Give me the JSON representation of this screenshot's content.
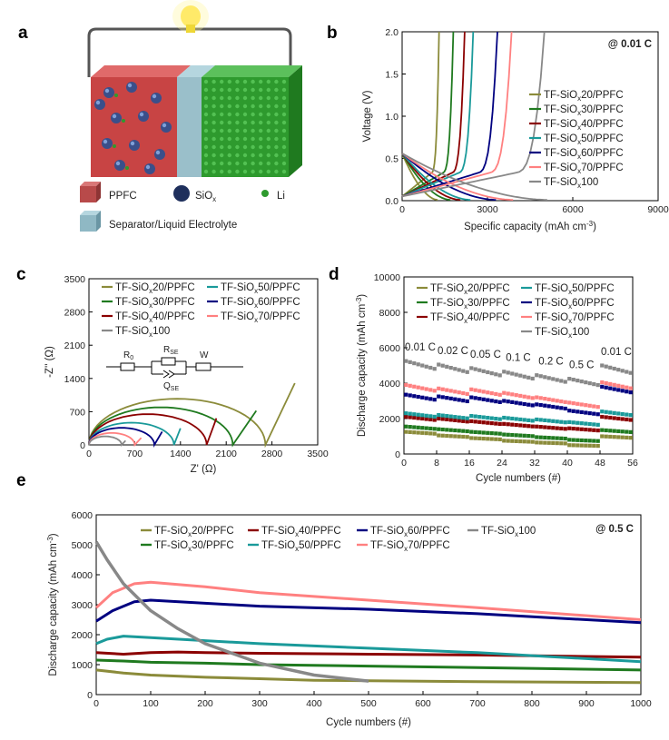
{
  "colors": {
    "s20": "#8b8b3a",
    "s30": "#1f7a1f",
    "s40": "#8b0000",
    "s50": "#1a9a9a",
    "s60": "#000080",
    "s70": "#ff8080",
    "s100": "#888888",
    "ppfc_red": "#c84040",
    "electrode_green": "#2e9a2e"
  },
  "panel_a": {
    "letter": "a",
    "legend": [
      {
        "label": "PPFC",
        "icon": "cube-red-icon"
      },
      {
        "label": "SiO",
        "sub": "x",
        "icon": "sphere-blue-icon"
      },
      {
        "label": "Li",
        "icon": "dot-green-icon"
      },
      {
        "label": "Separator/Liquid Electrolyte",
        "icon": "cube-cyan-icon"
      }
    ]
  },
  "chart_data": [
    {
      "id": "b",
      "letter": "b",
      "type": "line",
      "xlabel": "Specific capacity (mAh cm",
      "xlabel_sup": "-3",
      "xlabel_end": ")",
      "ylabel": "Voltage (V)",
      "xlim": [
        0,
        9000
      ],
      "ylim": [
        0,
        2.0
      ],
      "xticks": [
        0,
        3000,
        6000,
        9000
      ],
      "xtick_labels": [
        "0",
        "3000",
        "6000",
        "9000"
      ],
      "yticks": [
        0,
        0.5,
        1.0,
        1.5,
        2.0
      ],
      "ytick_labels": [
        "0.0",
        "0.5",
        "1.0",
        "1.5",
        "2.0"
      ],
      "annotation": "@ 0.01 C",
      "series": [
        {
          "name": "TF-SiOx20/PPFC",
          "prefix": "TF-SiO",
          "sub": "x",
          "suffix": "20/PPFC",
          "color": "s20",
          "discharge_end": 1250,
          "charge_end": 1300
        },
        {
          "name": "TF-SiOx30/PPFC",
          "prefix": "TF-SiO",
          "sub": "x",
          "suffix": "30/PPFC",
          "color": "s30",
          "discharge_end": 1700,
          "charge_end": 1800
        },
        {
          "name": "TF-SiOx40/PPFC",
          "prefix": "TF-SiO",
          "sub": "x",
          "suffix": "40/PPFC",
          "color": "s40",
          "discharge_end": 2050,
          "charge_end": 2200
        },
        {
          "name": "TF-SiOx50/PPFC",
          "prefix": "TF-SiO",
          "sub": "x",
          "suffix": "50/PPFC",
          "color": "s50",
          "discharge_end": 2400,
          "charge_end": 2500
        },
        {
          "name": "TF-SiOx60/PPFC",
          "prefix": "TF-SiO",
          "sub": "x",
          "suffix": "60/PPFC",
          "color": "s60",
          "discharge_end": 3300,
          "charge_end": 3350
        },
        {
          "name": "TF-SiOx70/PPFC",
          "prefix": "TF-SiO",
          "sub": "x",
          "suffix": "70/PPFC",
          "color": "s70",
          "discharge_end": 3900,
          "charge_end": 3850
        },
        {
          "name": "TF-SiOx100",
          "prefix": "TF-SiO",
          "sub": "x",
          "suffix": "100",
          "color": "s100",
          "discharge_end": 5100,
          "charge_end": 5000
        }
      ]
    },
    {
      "id": "c",
      "letter": "c",
      "type": "line",
      "xlabel": "Z' (Ω)",
      "ylabel": "-Z'' (Ω)",
      "xlim": [
        0,
        3500
      ],
      "ylim": [
        0,
        3500
      ],
      "xticks": [
        0,
        700,
        1400,
        2100,
        2800,
        3500
      ],
      "xtick_labels": [
        "0",
        "700",
        "1400",
        "2100",
        "2800",
        "3500"
      ],
      "yticks": [
        0,
        700,
        1400,
        2100,
        2800,
        3500
      ],
      "ytick_labels": [
        "0",
        "700",
        "1400",
        "2100",
        "2800",
        "3500"
      ],
      "circuit": {
        "r0": "R",
        "r0_sub": "0",
        "rse": "R",
        "rse_sub": "SE",
        "qse": "Q",
        "qse_sub": "SE",
        "w": "W"
      },
      "series": [
        {
          "name": "TF-SiOx20/PPFC",
          "color": "s20",
          "semicircle_end": 2700,
          "tail_end_x": 3150,
          "tail_end_y": 1300
        },
        {
          "name": "TF-SiOx30/PPFC",
          "color": "s30",
          "semicircle_end": 2200,
          "tail_end_x": 2560,
          "tail_end_y": 720
        },
        {
          "name": "TF-SiOx40/PPFC",
          "color": "s40",
          "semicircle_end": 1800,
          "tail_end_x": 1950,
          "tail_end_y": 560
        },
        {
          "name": "TF-SiOx50/PPFC",
          "color": "s50",
          "semicircle_end": 1300,
          "tail_end_x": 1400,
          "tail_end_y": 350
        },
        {
          "name": "TF-SiOx60/PPFC",
          "color": "s60",
          "semicircle_end": 1000,
          "tail_end_x": 1120,
          "tail_end_y": 280
        },
        {
          "name": "TF-SiOx70/PPFC",
          "color": "s70",
          "semicircle_end": 700,
          "tail_end_x": 800,
          "tail_end_y": 150
        },
        {
          "name": "TF-SiOx100",
          "color": "s100",
          "semicircle_end": 500,
          "tail_end_x": 560,
          "tail_end_y": 90
        }
      ]
    },
    {
      "id": "d",
      "letter": "d",
      "type": "scatter",
      "xlabel": "Cycle numbers (#)",
      "ylabel": "Discharge capacity (mAh cm",
      "ylabel_sup": "-3",
      "ylabel_end": ")",
      "xlim": [
        0,
        56
      ],
      "ylim": [
        0,
        10000
      ],
      "xticks": [
        0,
        8,
        16,
        24,
        32,
        40,
        48,
        56
      ],
      "xtick_labels": [
        "0",
        "8",
        "16",
        "24",
        "32",
        "40",
        "48",
        "56"
      ],
      "yticks": [
        0,
        2000,
        4000,
        6000,
        8000,
        10000
      ],
      "ytick_labels": [
        "0",
        "2000",
        "4000",
        "6000",
        "8000",
        "10000"
      ],
      "rate_labels": [
        "0.01 C",
        "0.02 C",
        "0.05 C",
        "0.1 C",
        "0.2 C",
        "0.5 C",
        "0.01 C"
      ],
      "series": [
        {
          "name": "TF-SiOx20/PPFC",
          "color": "s20",
          "values": [
            1250,
            1050,
            900,
            750,
            650,
            500,
            1000
          ]
        },
        {
          "name": "TF-SiOx30/PPFC",
          "color": "s30",
          "values": [
            1550,
            1400,
            1250,
            1100,
            950,
            800,
            1350
          ]
        },
        {
          "name": "TF-SiOx40/PPFC",
          "color": "s40",
          "values": [
            2100,
            2000,
            1850,
            1700,
            1550,
            1450,
            2100
          ]
        },
        {
          "name": "TF-SiOx50/PPFC",
          "color": "s50",
          "values": [
            2300,
            2200,
            2150,
            2050,
            1950,
            1800,
            2400
          ]
        },
        {
          "name": "TF-SiOx60/PPFC",
          "color": "s60",
          "values": [
            3350,
            3250,
            3200,
            3000,
            2800,
            2450,
            3800
          ]
        },
        {
          "name": "TF-SiOx70/PPFC",
          "color": "s70",
          "values": [
            3900,
            3700,
            3650,
            3450,
            3200,
            2900,
            4050
          ]
        },
        {
          "name": "TF-SiOx100",
          "color": "s100",
          "values": [
            5250,
            5050,
            4850,
            4650,
            4450,
            4250,
            5000
          ]
        }
      ]
    },
    {
      "id": "e",
      "letter": "e",
      "type": "line",
      "xlabel": "Cycle numbers (#)",
      "ylabel": "Discharge capacity (mAh cm",
      "ylabel_sup": "-3",
      "ylabel_end": ")",
      "xlim": [
        0,
        1000
      ],
      "ylim": [
        0,
        6000
      ],
      "xticks": [
        0,
        100,
        200,
        300,
        400,
        500,
        600,
        700,
        800,
        900,
        1000
      ],
      "xtick_labels": [
        "0",
        "100",
        "200",
        "300",
        "400",
        "500",
        "600",
        "700",
        "800",
        "900",
        "1000"
      ],
      "yticks": [
        0,
        1000,
        2000,
        3000,
        4000,
        5000,
        6000
      ],
      "ytick_labels": [
        "0",
        "1000",
        "2000",
        "3000",
        "4000",
        "5000",
        "6000"
      ],
      "annotation": "@ 0.5 C",
      "series": [
        {
          "name": "TF-SiOx20/PPFC",
          "color": "s20",
          "x": [
            0,
            50,
            100,
            200,
            300,
            400,
            500,
            700,
            1000
          ],
          "y": [
            820,
            720,
            650,
            580,
            530,
            480,
            460,
            430,
            400
          ]
        },
        {
          "name": "TF-SiOx30/PPFC",
          "color": "s30",
          "x": [
            0,
            50,
            100,
            200,
            300,
            500,
            700,
            1000
          ],
          "y": [
            1150,
            1120,
            1080,
            1050,
            1000,
            950,
            900,
            820
          ]
        },
        {
          "name": "TF-SiOx40/PPFC",
          "color": "s40",
          "x": [
            0,
            50,
            100,
            150,
            200,
            300,
            500,
            700,
            1000
          ],
          "y": [
            1400,
            1350,
            1400,
            1420,
            1400,
            1380,
            1350,
            1320,
            1250
          ]
        },
        {
          "name": "TF-SiOx50/PPFC",
          "color": "s50",
          "x": [
            0,
            20,
            50,
            100,
            200,
            300,
            500,
            700,
            1000
          ],
          "y": [
            1700,
            1850,
            1950,
            1900,
            1800,
            1700,
            1550,
            1400,
            1100
          ]
        },
        {
          "name": "TF-SiOx60/PPFC",
          "color": "s60",
          "x": [
            0,
            30,
            70,
            100,
            200,
            300,
            500,
            700,
            1000
          ],
          "y": [
            2450,
            2800,
            3100,
            3150,
            3050,
            2950,
            2850,
            2700,
            2400
          ]
        },
        {
          "name": "TF-SiOx70/PPFC",
          "color": "s70",
          "x": [
            0,
            30,
            70,
            100,
            200,
            300,
            500,
            700,
            1000
          ],
          "y": [
            2900,
            3400,
            3700,
            3750,
            3600,
            3400,
            3150,
            2900,
            2500
          ]
        },
        {
          "name": "TF-SiOx100",
          "color": "s100",
          "x": [
            0,
            20,
            50,
            100,
            150,
            200,
            300,
            400,
            500
          ],
          "y": [
            5100,
            4500,
            3700,
            2800,
            2200,
            1700,
            1050,
            650,
            450
          ]
        }
      ]
    }
  ]
}
